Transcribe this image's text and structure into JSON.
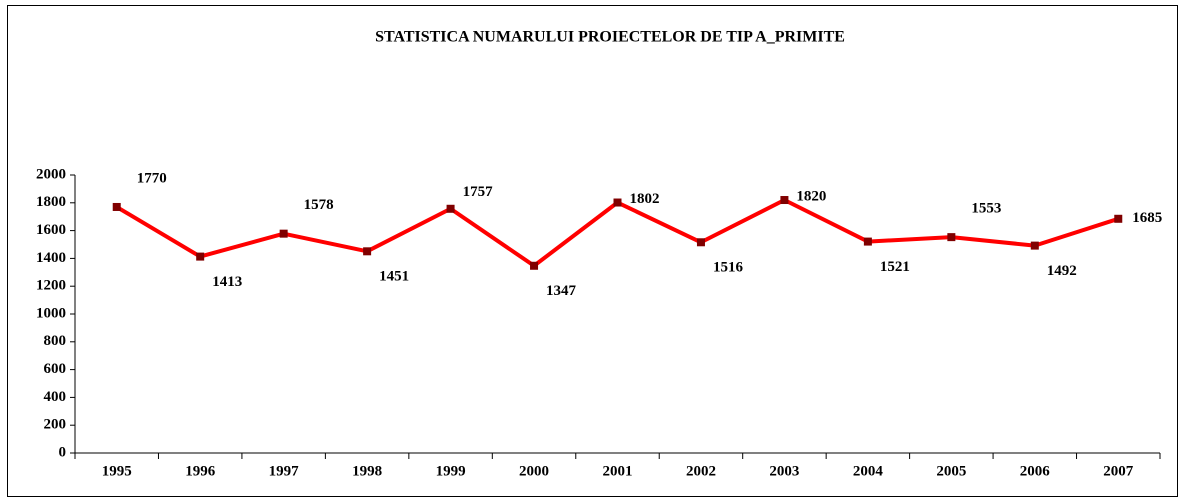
{
  "chart_data": {
    "type": "line",
    "title": "STATISTICA NUMARULUI PROIECTELOR DE TIP A_PRIMITE",
    "categories": [
      "1995",
      "1996",
      "1997",
      "1998",
      "1999",
      "2000",
      "2001",
      "2002",
      "2003",
      "2004",
      "2005",
      "2006",
      "2007"
    ],
    "series": [
      {
        "name": "A_PRIMITE",
        "color": "#ff0000",
        "marker_color": "#800000",
        "values": [
          1770,
          1413,
          1578,
          1451,
          1757,
          1347,
          1802,
          1516,
          1820,
          1521,
          1553,
          1492,
          1685
        ]
      }
    ],
    "ylim": [
      0,
      2000
    ],
    "yticks": [
      0,
      200,
      400,
      600,
      800,
      1000,
      1200,
      1400,
      1600,
      1800,
      2000
    ],
    "grid": false
  }
}
